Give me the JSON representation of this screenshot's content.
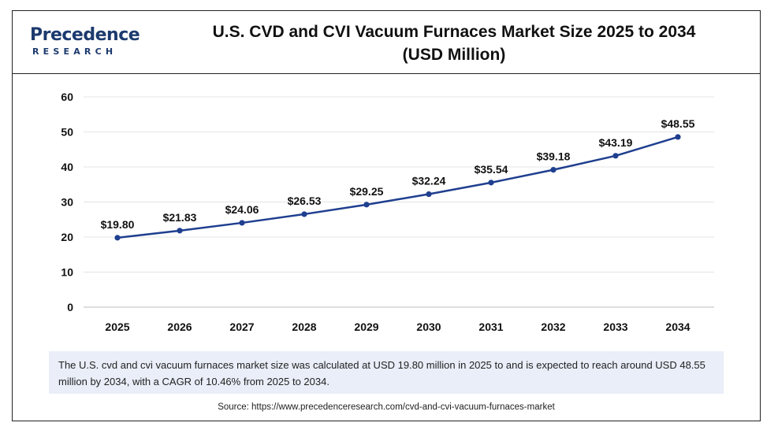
{
  "logo": {
    "word": "Precedence",
    "sub": "RESEARCH"
  },
  "title_line1": "U.S. CVD and CVI Vacuum Furnaces Market Size 2025 to 2034",
  "title_line2": "(USD Million)",
  "colors": {
    "line": "#1f3f8f",
    "grid": "#e4e4e4",
    "note_bg": "#e9eef8",
    "logo": "#1c3a6e"
  },
  "chart_data": {
    "type": "line",
    "title": "U.S. CVD and CVI Vacuum Furnaces Market Size 2025 to 2034 (USD Million)",
    "xlabel": "",
    "ylabel": "",
    "categories": [
      "2025",
      "2026",
      "2027",
      "2028",
      "2029",
      "2030",
      "2031",
      "2032",
      "2033",
      "2034"
    ],
    "values": [
      19.8,
      21.83,
      24.06,
      26.53,
      29.25,
      32.24,
      35.54,
      39.18,
      43.19,
      48.55
    ],
    "data_labels": [
      "$19.80",
      "$21.83",
      "$24.06",
      "$26.53",
      "$29.25",
      "$32.24",
      "$35.54",
      "$39.18",
      "$43.19",
      "$48.55"
    ],
    "yticks": [
      "0",
      "10",
      "20",
      "30",
      "40",
      "50",
      "60"
    ],
    "ylim": [
      0,
      60
    ],
    "grid": true,
    "legend": "none"
  },
  "note": "The U.S. cvd and cvi vacuum furnaces market size was calculated at USD 19.80 million in 2025 to and is expected to reach around USD 48.55 million by 2034, with a CAGR of 10.46% from 2025 to 2034.",
  "source": "Source: https://www.precedenceresearch.com/cvd-and-cvi-vacuum-furnaces-market"
}
